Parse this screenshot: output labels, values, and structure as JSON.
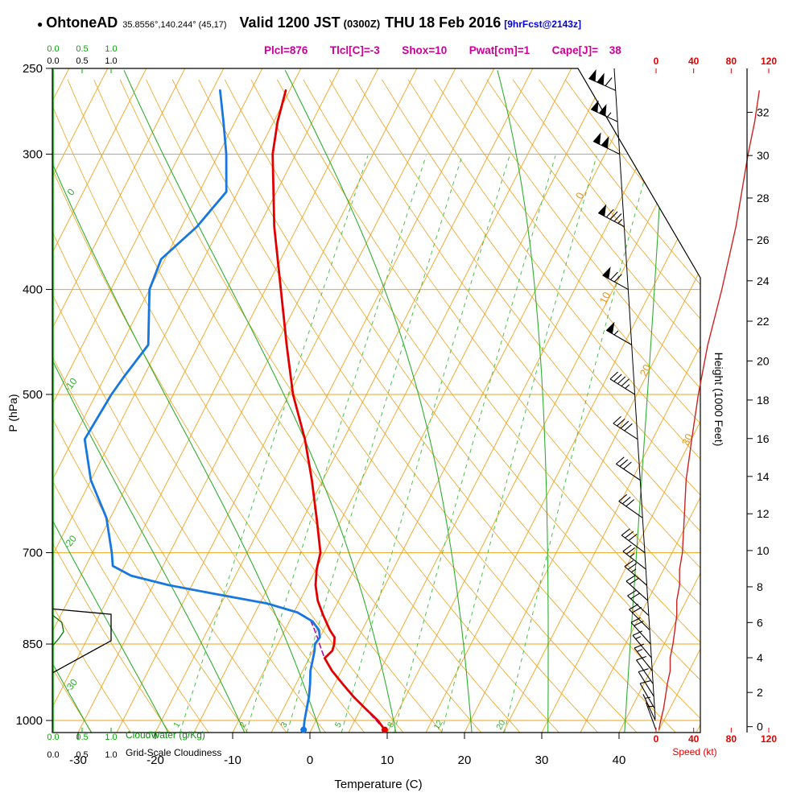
{
  "header": {
    "station_bullet": "●",
    "station": "OhtoneAD",
    "coords": "35.8556°,140.244° (45,17)",
    "valid": "Valid 1200 JST",
    "valid_z": "(0300Z)",
    "date": "THU 18 Feb 2016",
    "fcst": "[9hrFcst@2143z]",
    "params": "Plcl=876  Tlcl[C]=-3  Shox=10  Pwat[cm]=1  Cape[J]= 38"
  },
  "axes": {
    "pressure_label": "P (hPa)",
    "pressure_ticks": [
      250,
      300,
      400,
      500,
      700,
      850,
      1000
    ],
    "temp_label": "Temperature (C)",
    "temp_ticks": [
      -30,
      -20,
      -10,
      0,
      10,
      20,
      30,
      40
    ],
    "height_label": "Height (1000 Feet)",
    "height_ticks": [
      0,
      2,
      4,
      6,
      8,
      10,
      12,
      14,
      16,
      18,
      20,
      22,
      24,
      26,
      28,
      30,
      32
    ],
    "speed_label": "Speed (kt)",
    "speed_ticks": [
      0,
      40,
      80,
      120
    ],
    "cloudwater_label": "CloudWater (g/Kg)",
    "cloudwater_ticks": [
      "0.0",
      "0.5",
      "1.0"
    ],
    "cloudiness_label": "Grid-Scale Cloudiness",
    "cloudiness_ticks": [
      "0.0",
      "0.5",
      "1.0"
    ],
    "isotherm_inplot_labels": [
      0,
      10,
      20,
      30
    ],
    "moist_adiabat_labels": [
      10,
      0,
      -10,
      -20,
      -30
    ],
    "mixing_ratio_labels": [
      1,
      2,
      3,
      5,
      8,
      12,
      20
    ]
  },
  "chart_data": {
    "type": "skewt_logp_sounding",
    "pressure_range_hpa": [
      250,
      1026
    ],
    "isotherm_step_c": 5,
    "dry_adiabat_step_c": 5,
    "moist_adiabats_c": [
      -30,
      -20,
      -10,
      0,
      10,
      20,
      30,
      40
    ],
    "mixing_ratio_gkg": [
      1,
      2,
      3,
      5,
      8,
      12,
      20
    ],
    "temperature_profile": {
      "pressure_hpa": [
        1020,
        1000,
        975,
        950,
        925,
        900,
        876,
        862,
        850,
        838,
        825,
        800,
        775,
        750,
        725,
        700,
        650,
        600,
        550,
        500,
        450,
        400,
        350,
        300,
        280,
        262
      ],
      "temp_c": [
        9.5,
        8.0,
        5.6,
        3.2,
        1.0,
        -1.2,
        -3.0,
        -2.5,
        -2.7,
        -3.1,
        -4.2,
        -6.0,
        -7.7,
        -9.0,
        -9.9,
        -10.5,
        -13.3,
        -16.4,
        -20.0,
        -24.5,
        -28.6,
        -33.0,
        -38.0,
        -43.0,
        -44.5,
        -45.5
      ]
    },
    "dewpoint_profile": {
      "pressure_hpa": [
        1020,
        1000,
        975,
        950,
        925,
        900,
        876,
        862,
        850,
        838,
        825,
        810,
        795,
        780,
        765,
        750,
        735,
        720,
        700,
        650,
        600,
        550,
        500,
        480,
        450,
        400,
        375,
        350,
        325,
        300,
        280,
        262
      ],
      "temp_c": [
        -1.0,
        -1.5,
        -2.0,
        -2.5,
        -3.2,
        -4.0,
        -4.5,
        -4.8,
        -5.2,
        -5.0,
        -5.6,
        -7.0,
        -9.5,
        -14.0,
        -21.0,
        -28.0,
        -33.5,
        -36.5,
        -37.5,
        -40.5,
        -45.0,
        -48.5,
        -48.0,
        -47.5,
        -46.5,
        -50.0,
        -50.5,
        -48.0,
        -46.5,
        -49.0,
        -51.5,
        -54.0
      ]
    },
    "parcel_path": {
      "pressure_hpa": [
        1020,
        990,
        960,
        930,
        900,
        876,
        860,
        840,
        820,
        810
      ],
      "temp_c": [
        9.5,
        6.9,
        4.2,
        1.5,
        -1.2,
        -3.0,
        -4.0,
        -5.2,
        -6.5,
        -7.2
      ]
    },
    "wind_profile": {
      "pressure_hpa": [
        1020,
        1000,
        975,
        950,
        925,
        900,
        875,
        850,
        825,
        800,
        775,
        750,
        725,
        700,
        650,
        600,
        550,
        500,
        450,
        400,
        350,
        300,
        280,
        262
      ],
      "dir_deg": [
        340,
        335,
        330,
        328,
        325,
        322,
        320,
        318,
        315,
        313,
        312,
        310,
        308,
        307,
        305,
        304,
        303,
        302,
        300,
        299,
        298,
        296,
        295,
        294
      ],
      "speed_kt": [
        3,
        5,
        8,
        10,
        12,
        15,
        15,
        18,
        20,
        22,
        22,
        25,
        25,
        28,
        30,
        32,
        38,
        45,
        55,
        70,
        85,
        98,
        105,
        110
      ]
    },
    "cloudiness_profile": {
      "pressure_hpa": [
        903,
        844,
        798,
        789
      ],
      "fraction": [
        0,
        1,
        1,
        0
      ]
    },
    "cloudwater_profile": {
      "pressure_hpa": [
        852,
        840,
        828,
        812,
        800
      ],
      "g_per_kg": [
        0,
        0.1,
        0.18,
        0.15,
        0
      ]
    },
    "colors": {
      "grid": "#efa41f",
      "moist": "#2fae2f",
      "mixing": "#4cc04c",
      "temperature": "#e00000",
      "dewpoint": "#1777e0",
      "parcel": "#aa00aa",
      "speed_curve": "#cc2222",
      "cloudwater": "#007700",
      "cloudiness": "#000000",
      "axis_green": "#00aa00",
      "label_orange": "#e8951a",
      "speed_text": "#dd0000"
    }
  }
}
